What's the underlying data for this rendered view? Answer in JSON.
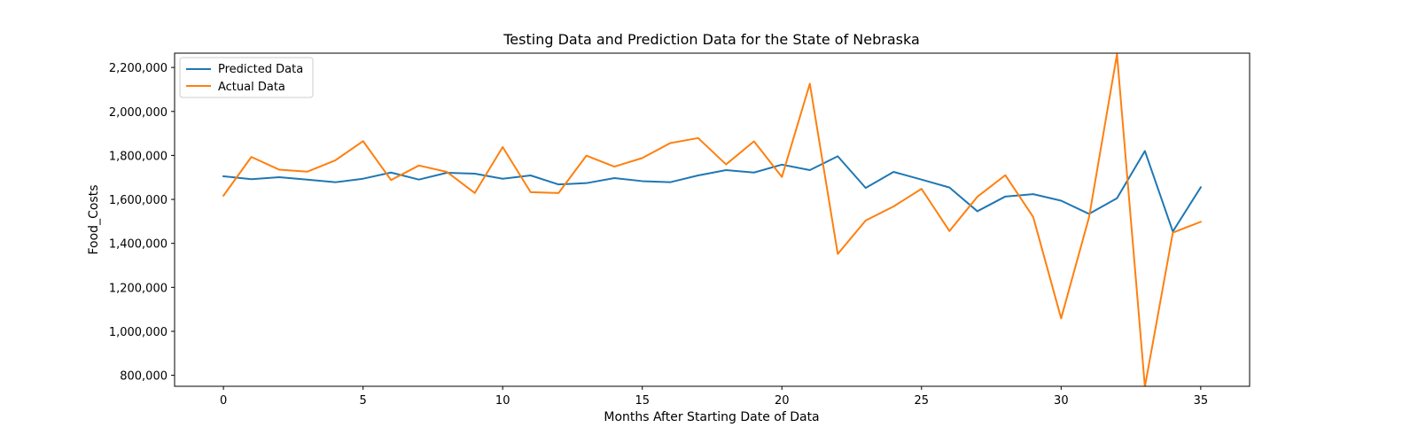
{
  "chart_data": {
    "type": "line",
    "title": "Testing Data and Prediction Data for the State of Nebraska",
    "xlabel": "Months After Starting Date of Data",
    "ylabel": "Food_Costs",
    "xlim": [
      -1.75,
      36.75
    ],
    "ylim": [
      750000,
      2265000
    ],
    "xticks": [
      0,
      5,
      10,
      15,
      20,
      25,
      30,
      35
    ],
    "xtick_labels": [
      "0",
      "5",
      "10",
      "15",
      "20",
      "25",
      "30",
      "35"
    ],
    "yticks": [
      800000,
      1000000,
      1200000,
      1400000,
      1600000,
      1800000,
      2000000,
      2200000
    ],
    "ytick_labels": [
      "800,000",
      "1,000,000",
      "1,200,000",
      "1,400,000",
      "1,600,000",
      "1,800,000",
      "2,000,000",
      "2,200,000"
    ],
    "grid": false,
    "legend_position": "top-left",
    "x": [
      0,
      1,
      2,
      3,
      4,
      5,
      6,
      7,
      8,
      9,
      10,
      11,
      12,
      13,
      14,
      15,
      16,
      17,
      18,
      19,
      20,
      21,
      22,
      23,
      24,
      25,
      26,
      27,
      28,
      29,
      30,
      31,
      32,
      33,
      34,
      35
    ],
    "series": [
      {
        "name": "Predicted Data",
        "color": "#1f77b4",
        "values": [
          1705000,
          1692000,
          1701000,
          1690000,
          1678000,
          1694000,
          1722000,
          1690000,
          1721000,
          1717000,
          1694000,
          1709000,
          1668000,
          1674000,
          1697000,
          1683000,
          1678000,
          1709000,
          1733000,
          1722000,
          1758000,
          1733000,
          1796000,
          1652000,
          1725000,
          1690000,
          1654000,
          1546000,
          1613000,
          1624000,
          1594000,
          1534000,
          1605000,
          1820000,
          1454000,
          1655000
        ]
      },
      {
        "name": "Actual Data",
        "color": "#ff7f0e",
        "values": [
          1617000,
          1793000,
          1735000,
          1726000,
          1777000,
          1865000,
          1688000,
          1754000,
          1725000,
          1629000,
          1838000,
          1633000,
          1629000,
          1799000,
          1749000,
          1788000,
          1856000,
          1879000,
          1759000,
          1864000,
          1702000,
          2126000,
          1352000,
          1504000,
          1568000,
          1648000,
          1456000,
          1612000,
          1710000,
          1520000,
          1059000,
          1519000,
          2260000,
          748000,
          1449000,
          1498000
        ]
      }
    ]
  }
}
